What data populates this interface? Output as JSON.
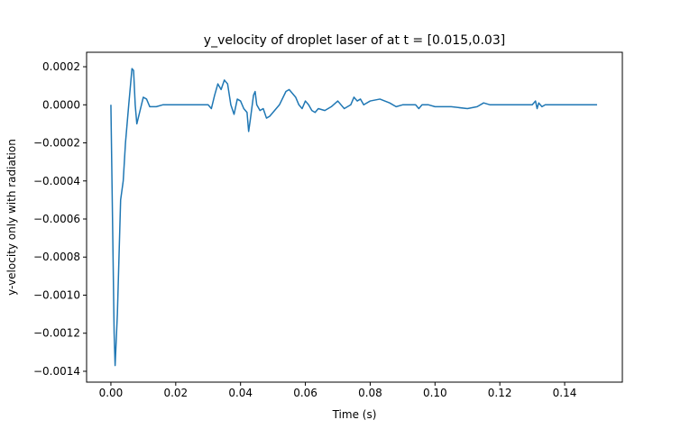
{
  "chart_data": {
    "type": "line",
    "title": "y_velocity of droplet laser of at t = [0.015,0.03]",
    "xlabel": "Time (s)",
    "ylabel": "y-velocity only with radiation",
    "x": [
      0,
      0.0005,
      0.001,
      0.0013,
      0.002,
      0.0025,
      0.003,
      0.0038,
      0.0045,
      0.0055,
      0.0065,
      0.007,
      0.0075,
      0.008,
      0.009,
      0.01,
      0.011,
      0.012,
      0.014,
      0.016,
      0.02,
      0.025,
      0.03,
      0.031,
      0.032,
      0.033,
      0.034,
      0.035,
      0.036,
      0.037,
      0.038,
      0.039,
      0.04,
      0.041,
      0.042,
      0.0425,
      0.043,
      0.044,
      0.0445,
      0.045,
      0.046,
      0.047,
      0.048,
      0.049,
      0.05,
      0.052,
      0.054,
      0.055,
      0.056,
      0.057,
      0.058,
      0.059,
      0.06,
      0.061,
      0.062,
      0.063,
      0.064,
      0.066,
      0.068,
      0.07,
      0.072,
      0.074,
      0.075,
      0.076,
      0.077,
      0.078,
      0.08,
      0.083,
      0.086,
      0.088,
      0.09,
      0.092,
      0.094,
      0.095,
      0.096,
      0.098,
      0.1,
      0.105,
      0.11,
      0.113,
      0.115,
      0.117,
      0.12,
      0.125,
      0.13,
      0.131,
      0.1315,
      0.132,
      0.133,
      0.134,
      0.14,
      0.15
    ],
    "series": [
      {
        "name": "y_velocity",
        "color": "#1f77b4",
        "values": [
          0,
          -0.0006,
          -0.0012,
          -0.00137,
          -0.0011,
          -0.0008,
          -0.0005,
          -0.0004,
          -0.0002,
          0,
          0.00019,
          0.00018,
          0,
          -0.0001,
          -3e-05,
          4e-05,
          3e-05,
          -1e-05,
          -1e-05,
          0,
          0,
          0,
          0,
          -2e-05,
          5e-05,
          0.00011,
          8e-05,
          0.00013,
          0.00011,
          0,
          -5e-05,
          3e-05,
          2e-05,
          -2e-05,
          -4e-05,
          -0.00014,
          -8e-05,
          5e-05,
          7e-05,
          0,
          -3e-05,
          -2e-05,
          -7e-05,
          -6e-05,
          -4e-05,
          0,
          7e-05,
          8e-05,
          6e-05,
          4e-05,
          0,
          -2e-05,
          2e-05,
          0,
          -3e-05,
          -4e-05,
          -2e-05,
          -3e-05,
          -1e-05,
          2e-05,
          -2e-05,
          0,
          4e-05,
          2e-05,
          3e-05,
          0,
          2e-05,
          3e-05,
          1e-05,
          -1e-05,
          0,
          0,
          0,
          -2e-05,
          0,
          0,
          -1e-05,
          -1e-05,
          -2e-05,
          -1e-05,
          1e-05,
          0,
          0,
          0,
          0,
          2e-05,
          -2e-05,
          1e-05,
          -1e-05,
          0,
          0,
          0
        ]
      }
    ],
    "xlim": [
      -0.0075,
      0.1578
    ],
    "ylim": [
      -0.001457,
      0.000276
    ],
    "xticks": [
      {
        "value": 0,
        "label": "0.00"
      },
      {
        "value": 0.02,
        "label": "0.02"
      },
      {
        "value": 0.04,
        "label": "0.04"
      },
      {
        "value": 0.06,
        "label": "0.06"
      },
      {
        "value": 0.08,
        "label": "0.08"
      },
      {
        "value": 0.1,
        "label": "0.10"
      },
      {
        "value": 0.12,
        "label": "0.12"
      },
      {
        "value": 0.14,
        "label": "0.14"
      }
    ],
    "yticks": [
      {
        "value": -0.0014,
        "label": "−0.0014"
      },
      {
        "value": -0.0012,
        "label": "−0.0012"
      },
      {
        "value": -0.001,
        "label": "−0.0010"
      },
      {
        "value": -0.0008,
        "label": "−0.0008"
      },
      {
        "value": -0.0006,
        "label": "−0.0006"
      },
      {
        "value": -0.0004,
        "label": "−0.0004"
      },
      {
        "value": -0.0002,
        "label": "−0.0002"
      },
      {
        "value": 0,
        "label": "0.0000"
      },
      {
        "value": 0.0002,
        "label": "0.0002"
      }
    ]
  }
}
